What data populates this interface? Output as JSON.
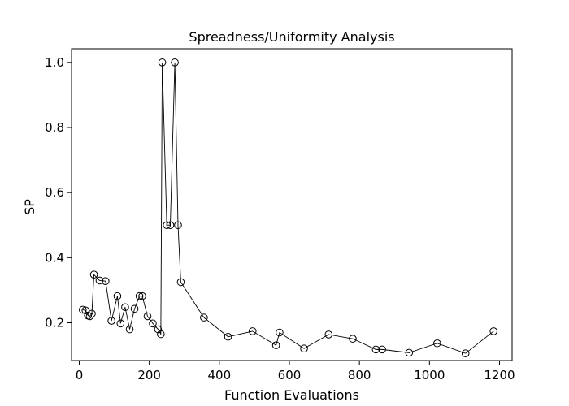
{
  "chart_data": {
    "type": "line",
    "title": "Spreadness/Uniformity Analysis",
    "xlabel": "Function Evaluations",
    "ylabel": "SP",
    "xlim": [
      -22,
      1236
    ],
    "ylim": [
      0.084,
      1.042
    ],
    "xticks": [
      0,
      200,
      400,
      600,
      800,
      1000,
      1200
    ],
    "yticks": [
      0.2,
      0.4,
      0.6,
      0.8,
      1.0
    ],
    "xtick_labels": [
      "0",
      "200",
      "400",
      "600",
      "800",
      "1000",
      "1200"
    ],
    "ytick_labels": [
      "0.2",
      "0.4",
      "0.6",
      "0.8",
      "1.0"
    ],
    "grid": false,
    "legend": "none",
    "series": [
      {
        "line_color": "#000000",
        "marker": "open-circle",
        "x": [
          10,
          18,
          25,
          30,
          36,
          42,
          58,
          75,
          92,
          109,
          118,
          131,
          144,
          158,
          172,
          180,
          195,
          210,
          225,
          233,
          237,
          250,
          260,
          273,
          282,
          290,
          356,
          425,
          495,
          562,
          572,
          642,
          712,
          781,
          847,
          865,
          942,
          1022,
          1103,
          1183
        ],
        "y": [
          0.24,
          0.238,
          0.222,
          0.22,
          0.228,
          0.348,
          0.33,
          0.328,
          0.206,
          0.282,
          0.198,
          0.248,
          0.18,
          0.243,
          0.282,
          0.282,
          0.22,
          0.198,
          0.18,
          0.165,
          1.0,
          0.5,
          0.5,
          1.0,
          0.5,
          0.325,
          0.216,
          0.157,
          0.174,
          0.131,
          0.17,
          0.121,
          0.164,
          0.151,
          0.118,
          0.118,
          0.108,
          0.137,
          0.106,
          0.174
        ]
      }
    ]
  }
}
